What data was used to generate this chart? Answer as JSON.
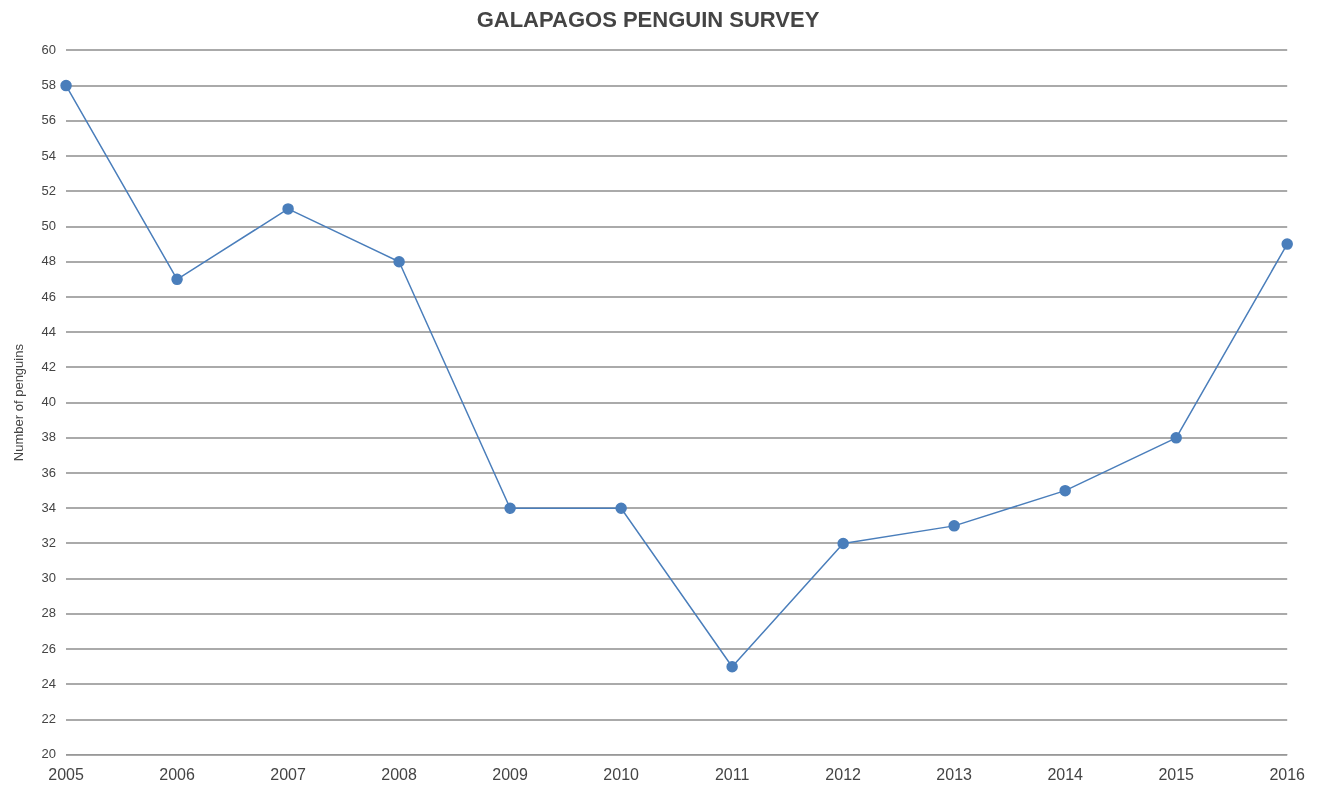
{
  "chart_data": {
    "type": "line",
    "title": "GALAPAGOS PENGUIN SURVEY",
    "ylabel": "Number of penguins",
    "categories": [
      "2005",
      "2006",
      "2007",
      "2008",
      "2009",
      "2010",
      "2011",
      "2012",
      "2013",
      "2014",
      "2015",
      "2016"
    ],
    "series": [
      {
        "color": "#4a7ebb",
        "values": [
          58,
          47,
          51,
          48,
          34,
          34,
          25,
          32,
          33,
          35,
          38,
          49
        ]
      }
    ],
    "ylim": [
      20,
      60
    ],
    "yticks": [
      20,
      22,
      24,
      26,
      28,
      30,
      32,
      34,
      36,
      38,
      40,
      42,
      44,
      46,
      48,
      50,
      52,
      54,
      56,
      58,
      60
    ],
    "grid": "y",
    "legend": false,
    "marker": "circle",
    "line_style": "solid"
  }
}
